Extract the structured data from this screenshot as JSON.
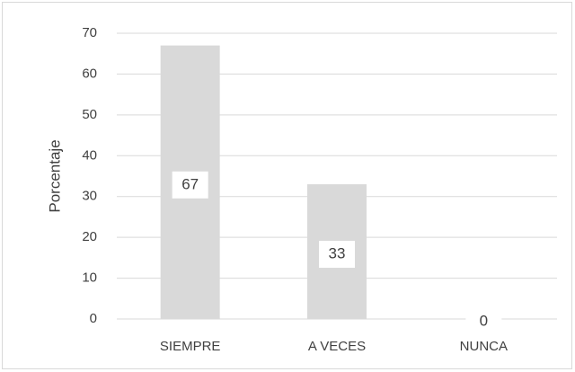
{
  "chart_data": {
    "type": "bar",
    "ylabel": "Porcentaje",
    "categories": [
      "SIEMPRE",
      "A VECES",
      "NUNCA"
    ],
    "values": [
      67,
      33,
      0
    ],
    "color": "#d9d9d9",
    "ylim": [
      0,
      70
    ],
    "yticks": [
      0,
      10,
      20,
      30,
      40,
      50,
      60,
      70
    ],
    "grid": true,
    "data_labels": true
  }
}
